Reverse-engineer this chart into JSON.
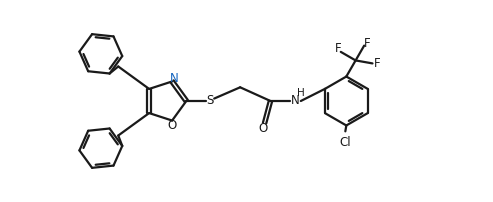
{
  "bg_color": "#ffffff",
  "line_color": "#1a1a1a",
  "line_width": 1.6,
  "font_size": 8.5,
  "figsize": [
    4.93,
    2.02
  ],
  "dpi": 100,
  "xlim": [
    0,
    10.0
  ],
  "ylim": [
    0,
    4.1
  ]
}
